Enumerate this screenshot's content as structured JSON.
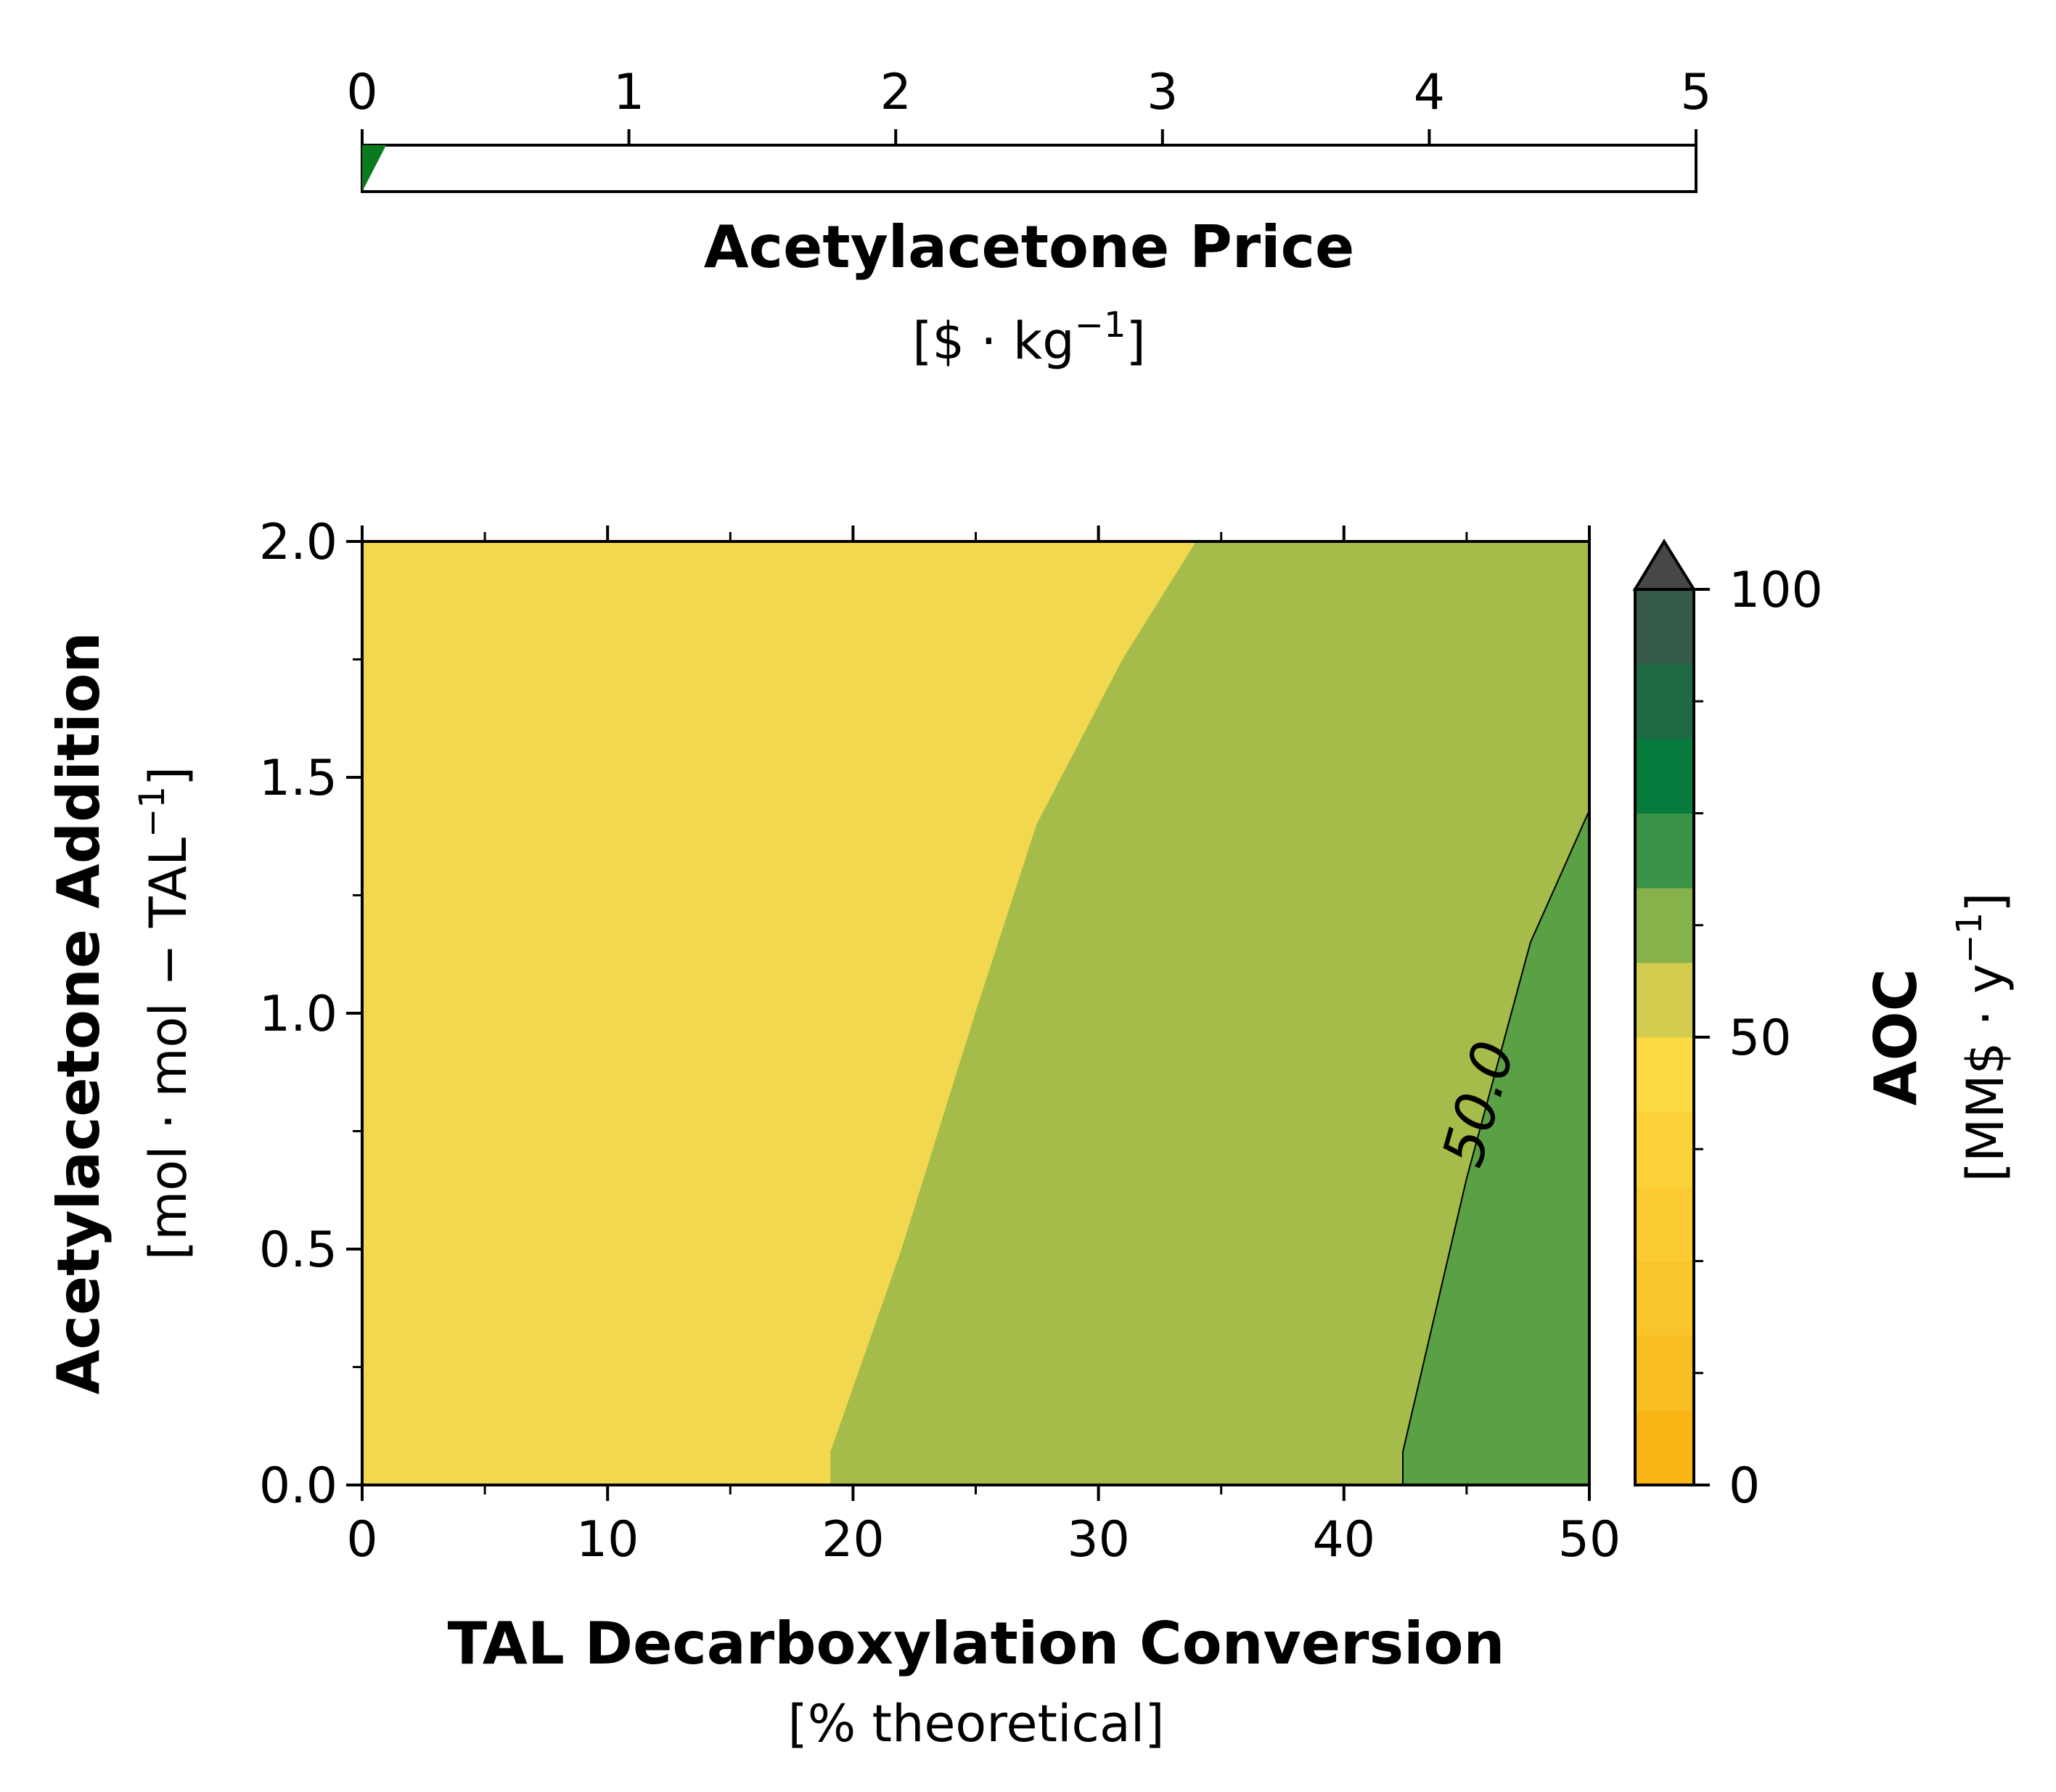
{
  "slider": {
    "label": "Acetylacetone Price",
    "unit_base": "[$ · kg",
    "unit_sup": "−1",
    "unit_end": "]",
    "ticks": [
      "0",
      "1",
      "2",
      "3",
      "4",
      "5"
    ],
    "range": [
      0,
      5
    ],
    "value": 0.09,
    "fill_color": "#0b7a1e"
  },
  "chart_data": {
    "type": "contourf",
    "x_axis": {
      "label": "TAL Decarboxylation Conversion",
      "unit": "[% theoretical]",
      "range": [
        0,
        50
      ],
      "tick_labels": [
        "0",
        "10",
        "20",
        "30",
        "40",
        "50"
      ]
    },
    "y_axis": {
      "label": "Acetylacetone Addition",
      "unit_base": "[mol · mol − TAL",
      "unit_sup": "−1",
      "unit_end": "]",
      "range": [
        0,
        2
      ],
      "tick_labels": [
        "0.0",
        "0.5",
        "1.0",
        "1.5",
        "2.0"
      ]
    },
    "regions": [
      {
        "level_range": [
          37.5,
          43.75
        ],
        "color": "#f2d84f",
        "boundary": [
          [
            0,
            0
          ],
          [
            19.1,
            0
          ],
          [
            19.1,
            0.07
          ],
          [
            22,
            0.5
          ],
          [
            25,
            1.0
          ],
          [
            27.5,
            1.4
          ],
          [
            31,
            1.75
          ],
          [
            34,
            2.0
          ],
          [
            0,
            2.0
          ]
        ]
      },
      {
        "level_range": [
          43.75,
          50
        ],
        "color": "#a6bc4a",
        "boundary": [
          [
            19.1,
            0
          ],
          [
            42.4,
            0
          ],
          [
            42.4,
            0.07
          ],
          [
            45,
            0.65
          ],
          [
            47.6,
            1.15
          ],
          [
            50,
            1.43
          ],
          [
            50,
            2.0
          ],
          [
            34,
            2.0
          ],
          [
            31,
            1.75
          ],
          [
            27.5,
            1.4
          ],
          [
            25,
            1.0
          ],
          [
            22,
            0.5
          ],
          [
            19.1,
            0.07
          ]
        ]
      },
      {
        "level_range": [
          50,
          56.25
        ],
        "color": "#5aa045",
        "boundary": [
          [
            42.4,
            0
          ],
          [
            50,
            0
          ],
          [
            50,
            1.43
          ],
          [
            47.6,
            1.15
          ],
          [
            45,
            0.65
          ],
          [
            42.4,
            0.07
          ]
        ]
      }
    ],
    "contour_lines": [
      {
        "level": 50.0,
        "label": "50.0",
        "points": [
          [
            42.4,
            0
          ],
          [
            42.4,
            0.07
          ],
          [
            45,
            0.65
          ],
          [
            47.6,
            1.15
          ],
          [
            50,
            1.43
          ]
        ]
      }
    ],
    "colorbar": {
      "label": "AOC",
      "unit_base": "[MM$ · y",
      "unit_sup": "−1",
      "unit_end": "]",
      "range": [
        0,
        100
      ],
      "tick_labels": [
        "0",
        "50",
        "100"
      ],
      "extend": "max",
      "levels": [
        0,
        12.5,
        25,
        37.5,
        50,
        62.5,
        75,
        87.5,
        100
      ],
      "bands": [
        {
          "from": 0,
          "to": 6.25,
          "color": "#f8b514"
        },
        {
          "from": 6.25,
          "to": 12.5,
          "color": "#f9bf22"
        },
        {
          "from": 12.5,
          "to": 18.75,
          "color": "#fac52a"
        },
        {
          "from": 18.75,
          "to": 25,
          "color": "#fbcb31"
        },
        {
          "from": 25,
          "to": 31.25,
          "color": "#fcd23a"
        },
        {
          "from": 31.25,
          "to": 37.5,
          "color": "#fdd943"
        },
        {
          "from": 37.5,
          "to": 43.75,
          "color": "#d2cd4e"
        },
        {
          "from": 43.75,
          "to": 50,
          "color": "#86b14b"
        },
        {
          "from": 50,
          "to": 56.25,
          "color": "#3a9346"
        },
        {
          "from": 56.25,
          "to": 62.5,
          "color": "#077a3e"
        },
        {
          "from": 62.5,
          "to": 68.75,
          "color": "#1f6a44"
        },
        {
          "from": 68.75,
          "to": 75,
          "color": "#355a48"
        }
      ],
      "extend_color": "#474747"
    }
  }
}
